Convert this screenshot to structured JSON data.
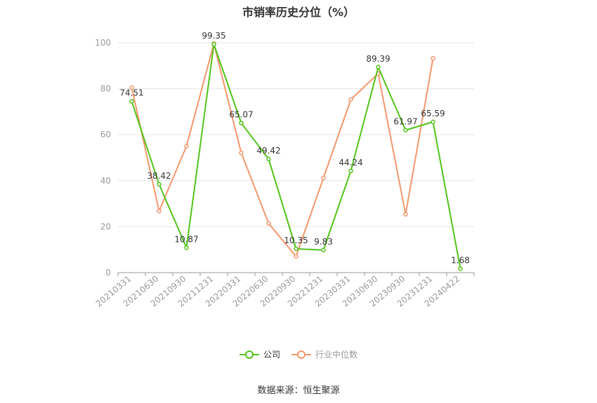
{
  "chart_data": {
    "type": "line",
    "title": "市销率历史分位（%）",
    "categories": [
      "20210331",
      "20210630",
      "20210930",
      "20211231",
      "20220331",
      "20220630",
      "20220930",
      "20221231",
      "20230331",
      "20230630",
      "20230930",
      "20231231",
      "20240422"
    ],
    "ylim": [
      0,
      100
    ],
    "yticks": [
      0,
      20,
      40,
      60,
      80,
      100
    ],
    "grid": true,
    "legend_position": "bottom",
    "series": [
      {
        "name": "公司",
        "color": "#52c41a",
        "values": [
          74.51,
          38.42,
          10.87,
          99.35,
          65.07,
          49.42,
          10.35,
          9.83,
          44.24,
          89.39,
          61.97,
          65.59,
          1.68
        ],
        "labels": [
          "74.51",
          "38.42",
          "10.87",
          "99.35",
          "65.07",
          "49.42",
          "10.35",
          "9.83",
          "44.24",
          "89.39",
          "61.97",
          "65.59",
          "1.68"
        ]
      },
      {
        "name": "行业中位数",
        "color": "#f4976c",
        "values": [
          80.5,
          26.8,
          55.0,
          99.6,
          52.1,
          21.4,
          7.1,
          41.2,
          75.3,
          86.6,
          25.4,
          93.2,
          null
        ]
      }
    ]
  },
  "legend": {
    "company": "公司",
    "industry": "行业中位数"
  },
  "source": "数据来源：恒生聚源"
}
